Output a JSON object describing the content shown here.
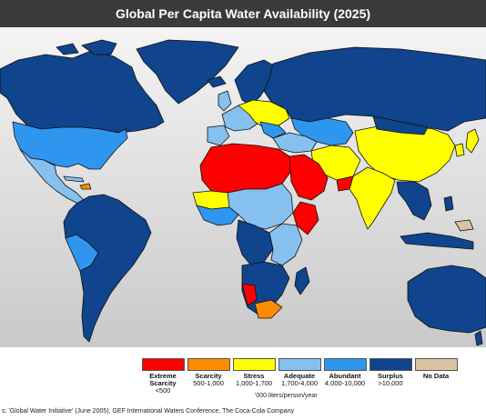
{
  "title": "Global Per Capita Water Availability (2025)",
  "colors": {
    "extreme_scarcity": "#ff0000",
    "scarcity": "#ff8c00",
    "stress": "#ffff00",
    "adequate": "#86c0ee",
    "abundant": "#2f96f0",
    "surplus": "#10448c",
    "no_data": "#d8c4a0",
    "ocean_top": "#f4f4f4",
    "ocean_bottom": "#c9c9c9",
    "border": "#111111"
  },
  "legend": [
    {
      "key": "extreme_scarcity",
      "label": "Extreme",
      "label2": "Scarcity",
      "range": "<500"
    },
    {
      "key": "scarcity",
      "label": "Scarcity",
      "label2": "",
      "range": "500-1,000"
    },
    {
      "key": "stress",
      "label": "Stress",
      "label2": "",
      "range": "1,000-1,700"
    },
    {
      "key": "adequate",
      "label": "Adequate",
      "label2": "",
      "range": "1,700-4,000"
    },
    {
      "key": "abundant",
      "label": "Abundant",
      "label2": "",
      "range": "4,000-10,000"
    },
    {
      "key": "surplus",
      "label": "Surplus",
      "label2": "",
      "range": ">10,000"
    },
    {
      "key": "no_data",
      "label": "No Data",
      "label2": "",
      "range": ""
    }
  ],
  "units": "'000 liters/person/year",
  "source": "s:  'Global Water Initiative' (June 2005), GEF International Waters Conference, The Coca-Cola Company"
}
